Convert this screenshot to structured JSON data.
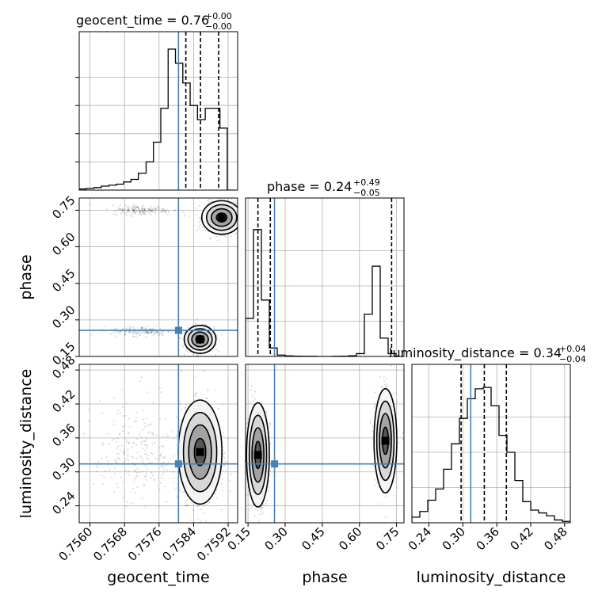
{
  "chart_data": {
    "type": "corner",
    "grid": true,
    "parameters": [
      "geocent_time",
      "phase",
      "luminosity_distance"
    ],
    "truths": [
      0.75805,
      0.257,
      0.314
    ],
    "colors": {
      "truth": "#4682b4",
      "hist": "#000000",
      "grid": "#b0b0b0",
      "contour": "#000000"
    },
    "panels": {
      "geocent_time_hist": {
        "title": {
          "main": "geocent_time = 0.76",
          "sup": "+0.00",
          "sub": "−0.00"
        },
        "xlim": [
          0.75575,
          0.75942
        ],
        "ylim": [
          0,
          1.0
        ],
        "y_ticks": [
          0.2,
          0.4,
          0.6,
          0.8
        ],
        "quantiles": [
          0.75822,
          0.75856,
          0.75898
        ],
        "bin_edges": [
          0.75575,
          0.75592,
          0.75609,
          0.75626,
          0.75644,
          0.75661,
          0.75678,
          0.75695,
          0.75712,
          0.7573,
          0.75747,
          0.75764,
          0.75781,
          0.75798,
          0.75815,
          0.75832,
          0.75849,
          0.75867,
          0.75884,
          0.75901,
          0.75918,
          0.75935
        ],
        "values": [
          0.008,
          0.012,
          0.018,
          0.028,
          0.035,
          0.042,
          0.058,
          0.076,
          0.12,
          0.2,
          0.34,
          0.58,
          1.0,
          0.9,
          0.76,
          0.6,
          0.5,
          0.58,
          0.58,
          0.44,
          0
        ]
      },
      "phase_hist": {
        "title": {
          "main": "phase = 0.24",
          "sup": "+0.49",
          "sub": "−0.05"
        },
        "xlim": [
          0.14,
          0.78
        ],
        "ylim": [
          0,
          1.0
        ],
        "quantiles": [
          0.19,
          0.24,
          0.73
        ],
        "bin_edges": [
          0.14,
          0.172,
          0.204,
          0.236,
          0.268,
          0.3,
          0.332,
          0.364,
          0.396,
          0.428,
          0.46,
          0.492,
          0.524,
          0.556,
          0.588,
          0.62,
          0.652,
          0.684,
          0.716,
          0.748,
          0.78
        ],
        "values": [
          0.27,
          0.9,
          0.4,
          0.06,
          0.01,
          0.004,
          0.002,
          0.001,
          0.001,
          0,
          0,
          0.001,
          0.002,
          0.005,
          0.02,
          0.3,
          0.64,
          0.13,
          0.02,
          0
        ]
      },
      "luminosity_distance_hist": {
        "title": {
          "main": "luminosity_distance = 0.34",
          "sup": "+0.04",
          "sub": "−0.04"
        },
        "xlim": [
          0.21,
          0.49
        ],
        "ylim": [
          0,
          1.0
        ],
        "quantiles": [
          0.297,
          0.338,
          0.377
        ],
        "bin_edges": [
          0.21,
          0.224,
          0.238,
          0.252,
          0.266,
          0.28,
          0.294,
          0.308,
          0.322,
          0.336,
          0.35,
          0.364,
          0.378,
          0.392,
          0.406,
          0.42,
          0.434,
          0.448,
          0.462,
          0.476,
          0.49
        ],
        "values": [
          0.04,
          0.08,
          0.16,
          0.24,
          0.38,
          0.56,
          0.74,
          0.88,
          0.95,
          0.96,
          0.83,
          0.62,
          0.5,
          0.3,
          0.15,
          0.09,
          0.07,
          0.05,
          0.02,
          0.01
        ]
      },
      "phase_vs_geocent_time": {
        "xlim": [
          0.75575,
          0.75942
        ],
        "ylim": [
          0.15,
          0.8
        ],
        "modes": [
          {
            "x": 0.75855,
            "y": 0.22,
            "sx": 0.00016,
            "sy": 0.025,
            "n": 900
          },
          {
            "x": 0.75905,
            "y": 0.72,
            "sx": 0.0002,
            "sy": 0.03,
            "n": 700
          },
          {
            "x": 0.7572,
            "y": 0.255,
            "sx": 0.00035,
            "sy": 0.01,
            "n": 160
          },
          {
            "x": 0.7572,
            "y": 0.75,
            "sx": 0.00035,
            "sy": 0.01,
            "n": 160
          }
        ]
      },
      "luminosity_distance_vs_geocent_time": {
        "xlim": [
          0.75575,
          0.75942
        ],
        "ylim": [
          0.21,
          0.49
        ],
        "modes": [
          {
            "x": 0.75855,
            "y": 0.335,
            "sx": 0.00022,
            "sy": 0.04,
            "n": 1300
          },
          {
            "x": 0.7571,
            "y": 0.33,
            "sx": 0.0005,
            "sy": 0.05,
            "n": 240
          }
        ]
      },
      "luminosity_distance_vs_phase": {
        "xlim": [
          0.14,
          0.78
        ],
        "ylim": [
          0.21,
          0.49
        ],
        "modes": [
          {
            "x": 0.19,
            "y": 0.33,
            "sx": 0.02,
            "sy": 0.04,
            "n": 900
          },
          {
            "x": 0.705,
            "y": 0.355,
            "sx": 0.02,
            "sy": 0.04,
            "n": 700
          }
        ]
      }
    },
    "ticks": {
      "geocent_time": {
        "values": [
          0.756,
          0.7568,
          0.7576,
          0.7584,
          0.7592
        ],
        "labels": [
          "0.7560",
          "0.7568",
          "0.7576",
          "0.7584",
          "0.7592"
        ]
      },
      "phase": {
        "values": [
          0.15,
          0.3,
          0.45,
          0.6,
          0.75
        ],
        "labels": [
          "0.15",
          "0.30",
          "0.45",
          "0.60",
          "0.75"
        ]
      },
      "luminosity_distance": {
        "values": [
          0.24,
          0.3,
          0.36,
          0.42,
          0.48
        ],
        "labels": [
          "0.24",
          "0.30",
          "0.36",
          "0.42",
          "0.48"
        ]
      }
    },
    "xlabels": [
      "geocent_time",
      "phase",
      "luminosity_distance"
    ],
    "ylabels": [
      "phase",
      "luminosity_distance"
    ]
  }
}
